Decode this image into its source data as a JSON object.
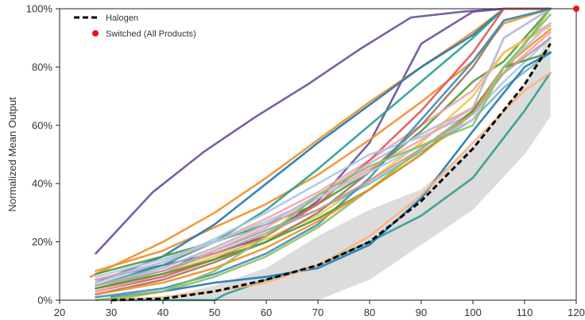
{
  "chart_data": {
    "type": "line",
    "ylabel": "Normalized Mean Output",
    "xlim": [
      20,
      120
    ],
    "ylim": [
      0,
      100
    ],
    "x_ticks": [
      20,
      30,
      40,
      50,
      60,
      70,
      80,
      90,
      100,
      110,
      120
    ],
    "x_tick_labels": [
      "20",
      "30",
      "40",
      "50",
      "60",
      "70",
      "80",
      "90",
      "100",
      "110",
      "120"
    ],
    "y_ticks": [
      0,
      20,
      40,
      60,
      80,
      100
    ],
    "y_tick_labels": [
      "0%",
      "20%",
      "40%",
      "60%",
      "80%",
      "100%"
    ],
    "grid": false,
    "legend": {
      "placement": "top-left",
      "items": [
        {
          "label": "Halogen",
          "style": "dashed-line",
          "color": "#000000"
        },
        {
          "label": "Switched (All Products)",
          "style": "dot",
          "color": "#e8141c"
        }
      ]
    },
    "band": {
      "color": "#dcdcdc",
      "x": [
        27,
        40,
        50,
        60,
        70,
        80,
        90,
        100,
        110,
        115
      ],
      "upper": [
        0,
        1,
        5,
        11,
        22,
        31,
        38,
        53,
        74,
        92
      ],
      "lower": [
        0,
        0,
        0,
        0,
        0,
        7,
        19,
        31,
        50,
        63
      ]
    },
    "halogen": {
      "name": "Halogen",
      "color": "#000000",
      "x": [
        30,
        40,
        50,
        60,
        70,
        80,
        90,
        100,
        110,
        115
      ],
      "values": [
        0,
        0.5,
        3,
        7,
        12,
        20,
        34,
        52,
        74,
        88
      ]
    },
    "switched_point": {
      "name": "Switched (All Products)",
      "x": 120,
      "y": 100,
      "color": "#e8141c"
    },
    "series": [
      {
        "color": "#6b4c9a",
        "x": [
          27,
          38,
          48,
          58,
          68,
          78,
          88,
          98,
          106,
          115
        ],
        "values": [
          16,
          37,
          51,
          63,
          74,
          86,
          97,
          99,
          100,
          100
        ]
      },
      {
        "color": "#6b4c9a",
        "x": [
          27,
          40,
          50,
          60,
          70,
          80,
          90,
          100,
          106,
          115
        ],
        "values": [
          7,
          12,
          16,
          22,
          34,
          54,
          88,
          99,
          100,
          100
        ]
      },
      {
        "color": "#f28e2b",
        "x": [
          26,
          40,
          50,
          60,
          70,
          80,
          90,
          100,
          106,
          115
        ],
        "values": [
          8,
          20,
          30,
          42,
          55,
          68,
          80,
          92,
          100,
          100
        ]
      },
      {
        "color": "#f28e2b",
        "x": [
          27,
          40,
          50,
          60,
          70,
          80,
          90,
          100,
          106,
          115
        ],
        "values": [
          10,
          17,
          25,
          33,
          43,
          55,
          68,
          82,
          95,
          100
        ]
      },
      {
        "color": "#1f77b4",
        "x": [
          27,
          40,
          50,
          60,
          70,
          80,
          90,
          100,
          106,
          115
        ],
        "values": [
          6,
          15,
          26,
          40,
          54,
          67,
          80,
          91,
          100,
          100
        ]
      },
      {
        "color": "#2a9d8f",
        "x": [
          27,
          40,
          50,
          60,
          70,
          80,
          90,
          100,
          106,
          115
        ],
        "values": [
          5,
          12,
          20,
          31,
          45,
          60,
          75,
          90,
          100,
          100
        ]
      },
      {
        "color": "#4e9a3a",
        "x": [
          27,
          40,
          50,
          60,
          70,
          80,
          90,
          100,
          106,
          115
        ],
        "values": [
          9,
          15,
          20,
          26,
          33,
          44,
          58,
          75,
          82,
          100
        ]
      },
      {
        "color": "#f4a3a8",
        "x": [
          27,
          40,
          50,
          60,
          70,
          80,
          90,
          100,
          106,
          115
        ],
        "values": [
          7,
          13,
          20,
          28,
          37,
          48,
          60,
          72,
          85,
          95
        ]
      },
      {
        "color": "#e15759",
        "x": [
          27,
          40,
          50,
          60,
          70,
          80,
          90,
          100,
          106,
          115
        ],
        "values": [
          3,
          8,
          14,
          22,
          33,
          48,
          65,
          85,
          100,
          100
        ]
      },
      {
        "color": "#edc948",
        "x": [
          27,
          40,
          50,
          60,
          70,
          80,
          90,
          100,
          106,
          115
        ],
        "values": [
          4,
          9,
          15,
          21,
          29,
          41,
          54,
          70,
          85,
          94
        ]
      },
      {
        "color": "#b6b3d6",
        "x": [
          27,
          40,
          50,
          60,
          70,
          80,
          90,
          100,
          106,
          115
        ],
        "values": [
          5,
          11,
          18,
          26,
          36,
          47,
          57,
          66,
          90,
          100
        ]
      },
      {
        "color": "#76b7b2",
        "x": [
          27,
          40,
          50,
          60,
          70,
          80,
          90,
          100,
          106,
          115
        ],
        "values": [
          4,
          10,
          17,
          24,
          31,
          40,
          51,
          62,
          73,
          85
        ]
      },
      {
        "color": "#9c755f",
        "x": [
          27,
          40,
          50,
          60,
          70,
          80,
          90,
          100,
          106,
          115
        ],
        "values": [
          2,
          7,
          13,
          20,
          30,
          44,
          60,
          80,
          96,
          100
        ]
      },
      {
        "color": "#a6c8e8",
        "x": [
          27,
          40,
          50,
          60,
          70,
          80,
          90,
          100,
          106,
          115
        ],
        "values": [
          6,
          13,
          21,
          30,
          40,
          50,
          56,
          64,
          75,
          90
        ]
      },
      {
        "color": "#8fbf5f",
        "x": [
          30,
          40,
          50,
          60,
          70,
          80,
          90,
          100,
          106,
          115
        ],
        "values": [
          0,
          3,
          8,
          15,
          25,
          38,
          52,
          65,
          78,
          100
        ]
      },
      {
        "color": "#ff9da7",
        "x": [
          27,
          40,
          50,
          60,
          70,
          80,
          90,
          100,
          106,
          115
        ],
        "values": [
          3,
          9,
          17,
          25,
          35,
          45,
          55,
          66,
          78,
          92
        ]
      },
      {
        "color": "#3a8fb7",
        "x": [
          27,
          40,
          50,
          60,
          70,
          80,
          90,
          100,
          106,
          115
        ],
        "values": [
          1,
          4,
          9,
          16,
          26,
          42,
          62,
          82,
          96,
          100
        ]
      },
      {
        "color": "#4e9a3a",
        "x": [
          27,
          40,
          50,
          60,
          70,
          80,
          90,
          100,
          106,
          115
        ],
        "values": [
          4,
          9,
          14,
          20,
          28,
          38,
          50,
          65,
          80,
          85
        ]
      },
      {
        "color": "#f28e2b",
        "x": [
          27,
          40,
          50,
          60,
          70,
          80,
          90,
          100,
          106,
          115
        ],
        "values": [
          2,
          6,
          11,
          18,
          27,
          38,
          50,
          64,
          80,
          93
        ]
      },
      {
        "color": "#aec7e8",
        "x": [
          27,
          40,
          50,
          60,
          70,
          80,
          90,
          100,
          106,
          115
        ],
        "values": [
          8,
          14,
          20,
          27,
          35,
          44,
          53,
          62,
          80,
          95
        ]
      },
      {
        "color": "#c49c94",
        "x": [
          27,
          40,
          50,
          60,
          70,
          80,
          90,
          100,
          106,
          115
        ],
        "values": [
          5,
          10,
          16,
          23,
          31,
          41,
          52,
          64,
          78,
          90
        ]
      },
      {
        "color": "#2a9d8f",
        "x": [
          30,
          40,
          50,
          52,
          60,
          70,
          80,
          90,
          100,
          110,
          115
        ],
        "values": [
          0,
          0,
          0,
          2,
          7,
          12,
          20,
          29,
          42,
          65,
          78
        ]
      },
      {
        "color": "#1f77b4",
        "x": [
          30,
          40,
          50,
          60,
          70,
          80,
          90,
          100,
          110,
          115
        ],
        "values": [
          1,
          3,
          6,
          8,
          11,
          19,
          35,
          58,
          80,
          85
        ]
      },
      {
        "color": "#ffb07a",
        "x": [
          30,
          40,
          50,
          60,
          70,
          80,
          90,
          100,
          110,
          115
        ],
        "values": [
          0,
          1,
          3,
          6,
          12,
          22,
          36,
          54,
          72,
          78
        ]
      },
      {
        "color": "#8fbf5f",
        "x": [
          27,
          40,
          50,
          60,
          70,
          80,
          90,
          100,
          106,
          115
        ],
        "values": [
          0,
          3,
          10,
          22,
          36,
          46,
          53,
          60,
          80,
          98
        ]
      }
    ]
  }
}
